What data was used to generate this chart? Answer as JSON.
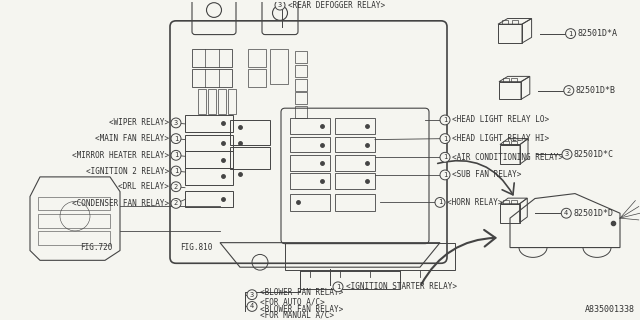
{
  "bg_color": "#f0f0f0",
  "line_color": "#444444",
  "text_color": "#333333",
  "ref_code": "A835001338",
  "part_codes": [
    "82501D*A",
    "82501D*B",
    "82501D*C",
    "82501D*D"
  ]
}
